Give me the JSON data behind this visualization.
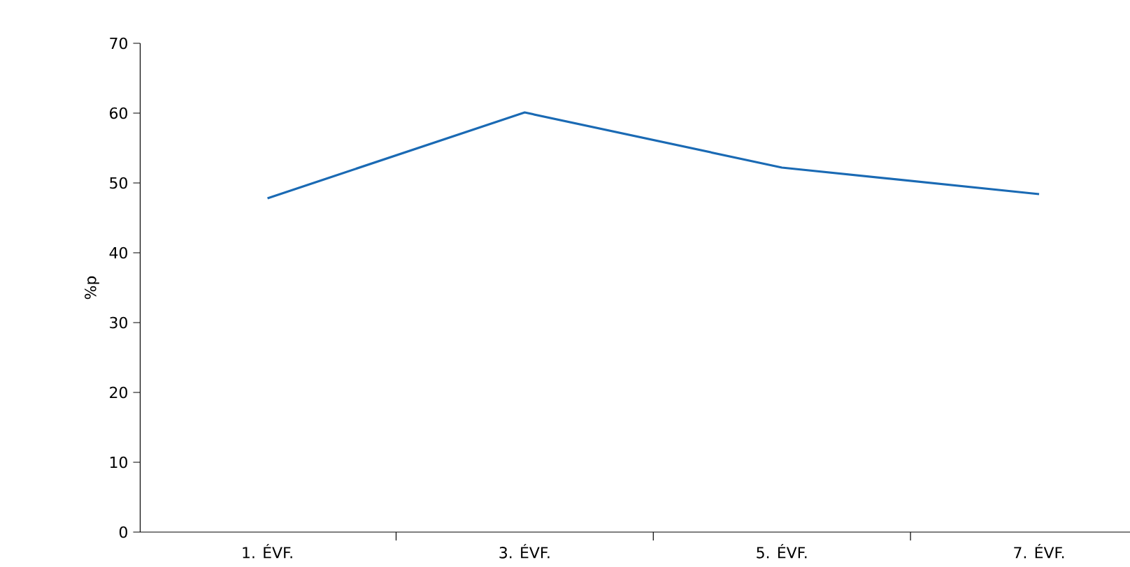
{
  "chart_data": {
    "type": "line",
    "ylabel": "%p",
    "categories": [
      "1. ÉVF.",
      "3. ÉVF.",
      "5. ÉVF.",
      "7. ÉVF."
    ],
    "series": [
      {
        "color": "#1a6ab4",
        "values": [
          47.8,
          60.1,
          52.2,
          48.4
        ]
      }
    ],
    "ylim": [
      0,
      70
    ],
    "yticks": [
      0,
      10,
      20,
      30,
      40,
      50,
      60,
      70
    ],
    "grid": false
  }
}
